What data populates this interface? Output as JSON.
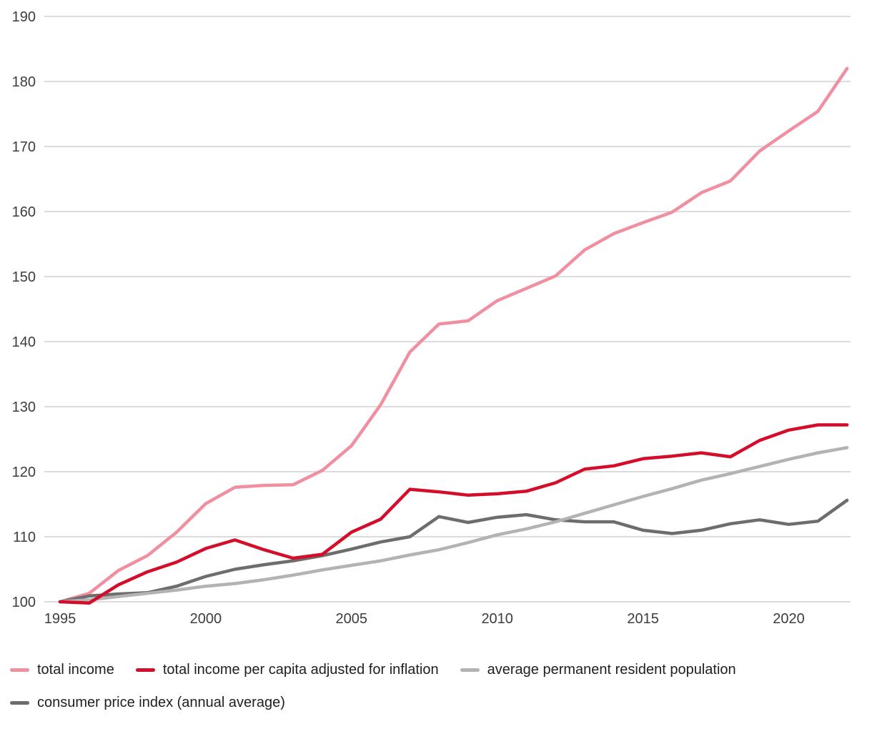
{
  "chart_data": {
    "type": "line",
    "x": [
      1995,
      1996,
      1997,
      1998,
      1999,
      2000,
      2001,
      2002,
      2003,
      2004,
      2005,
      2006,
      2007,
      2008,
      2009,
      2010,
      2011,
      2012,
      2013,
      2014,
      2015,
      2016,
      2017,
      2018,
      2019,
      2020,
      2021,
      2022
    ],
    "x_ticks": [
      1995,
      2000,
      2005,
      2010,
      2015,
      2020
    ],
    "y_ticks": [
      100,
      110,
      120,
      130,
      140,
      150,
      160,
      170,
      180,
      190
    ],
    "ylim": [
      100,
      190
    ],
    "xlim": [
      1995,
      2022
    ],
    "grid": "horizontal",
    "legend_position": "bottom-left",
    "series": [
      {
        "name": "total income",
        "color": "#ef8fa0",
        "values": [
          100,
          101.3,
          104.8,
          107.1,
          110.7,
          115.1,
          117.6,
          117.9,
          118.0,
          120.2,
          124.0,
          130.3,
          138.4,
          142.7,
          143.2,
          146.3,
          148.2,
          150.1,
          154.1,
          156.6,
          158.3,
          159.9,
          162.9,
          164.7,
          169.3,
          172.4,
          175.4,
          182.0
        ]
      },
      {
        "name": "total income per capita adjusted for inflation",
        "color": "#d40d2a",
        "values": [
          100,
          99.8,
          102.6,
          104.6,
          106.1,
          108.2,
          109.5,
          108.0,
          106.7,
          107.3,
          110.7,
          112.7,
          117.3,
          116.9,
          116.4,
          116.6,
          117.0,
          118.3,
          120.4,
          120.9,
          122.0,
          122.4,
          122.9,
          122.3,
          124.8,
          126.4,
          127.2,
          127.2
        ]
      },
      {
        "name": "average permanent resident population",
        "color": "#b3b3b3",
        "values": [
          100,
          100.3,
          100.8,
          101.3,
          101.8,
          102.4,
          102.8,
          103.4,
          104.1,
          104.9,
          105.6,
          106.3,
          107.2,
          108.0,
          109.1,
          110.3,
          111.2,
          112.3,
          113.6,
          114.9,
          116.2,
          117.4,
          118.7,
          119.7,
          120.8,
          121.9,
          122.9,
          123.7
        ]
      },
      {
        "name": "consumer price index (annual average)",
        "color": "#6d6d6d",
        "values": [
          100,
          100.9,
          101.2,
          101.4,
          102.4,
          103.9,
          105.0,
          105.7,
          106.3,
          107.1,
          108.1,
          109.2,
          110.0,
          113.1,
          112.2,
          113.0,
          113.4,
          112.6,
          112.3,
          112.3,
          111.0,
          110.5,
          111.0,
          112.0,
          112.6,
          111.9,
          112.4,
          115.6
        ]
      }
    ],
    "colors": {
      "gridline": "#d7d7d7",
      "tick_text": "#3d3d3d",
      "legend_text": "#1f1f1f"
    }
  }
}
